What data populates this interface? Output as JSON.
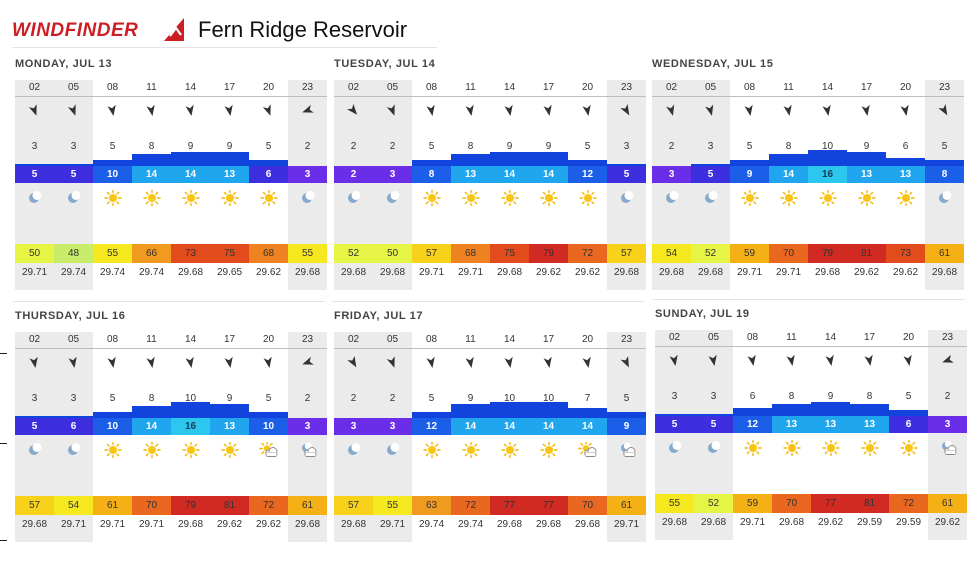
{
  "header": {
    "logo_text": "WINDFINDER",
    "title": "Fern Ridge Reservoir"
  },
  "hours": [
    "02",
    "05",
    "08",
    "11",
    "14",
    "17",
    "20",
    "23"
  ],
  "night_columns": [
    0,
    1,
    7
  ],
  "colors": {
    "night_bg": "#ebebeb",
    "wind_bar": "#1144dd",
    "brand": "#cc1f24"
  },
  "days": [
    {
      "title": "MONDAY, JUL 13",
      "dirs": [
        160,
        160,
        170,
        170,
        170,
        170,
        160,
        250
      ],
      "wind": [
        3,
        3,
        5,
        8,
        9,
        9,
        5,
        2
      ],
      "gusts": [
        5,
        5,
        10,
        14,
        14,
        13,
        6,
        3
      ],
      "weather": [
        "moon",
        "moon",
        "sun",
        "sun",
        "sun",
        "sun",
        "sun",
        "moon"
      ],
      "temp": [
        50,
        48,
        55,
        66,
        73,
        75,
        68,
        55
      ],
      "pressure": [
        "29.71",
        "29.74",
        "29.74",
        "29.74",
        "29.68",
        "29.65",
        "29.62",
        "29.68"
      ]
    },
    {
      "title": "TUESDAY, JUL 14",
      "dirs": [
        140,
        160,
        170,
        170,
        170,
        170,
        170,
        150
      ],
      "wind": [
        2,
        2,
        5,
        8,
        9,
        9,
        5,
        3
      ],
      "gusts": [
        2,
        3,
        8,
        13,
        14,
        14,
        12,
        5
      ],
      "weather": [
        "moon",
        "moon",
        "sun",
        "sun",
        "sun",
        "sun",
        "sun",
        "moon"
      ],
      "temp": [
        52,
        50,
        57,
        68,
        75,
        79,
        72,
        57
      ],
      "pressure": [
        "29.68",
        "29.68",
        "29.71",
        "29.71",
        "29.68",
        "29.62",
        "29.62",
        "29.68"
      ]
    },
    {
      "title": "WEDNESDAY, JUL 15",
      "dirs": [
        165,
        165,
        170,
        170,
        170,
        170,
        170,
        150
      ],
      "wind": [
        2,
        3,
        5,
        8,
        10,
        9,
        6,
        5
      ],
      "gusts": [
        3,
        5,
        9,
        14,
        16,
        13,
        13,
        8
      ],
      "weather": [
        "moon",
        "moon",
        "sun",
        "sun",
        "sun",
        "sun",
        "sun",
        "moon"
      ],
      "temp": [
        54,
        52,
        59,
        70,
        79,
        81,
        73,
        61
      ],
      "pressure": [
        "29.68",
        "29.68",
        "29.71",
        "29.71",
        "29.68",
        "29.62",
        "29.62",
        "29.68"
      ]
    },
    {
      "title": "THURSDAY, JUL 16",
      "dirs": [
        170,
        170,
        170,
        170,
        170,
        170,
        170,
        250
      ],
      "wind": [
        3,
        3,
        5,
        8,
        10,
        9,
        5,
        2
      ],
      "gusts": [
        5,
        6,
        10,
        14,
        16,
        13,
        10,
        3
      ],
      "weather": [
        "moon",
        "moon",
        "sun",
        "sun",
        "sun",
        "sun",
        "sun-cloud",
        "moon-cloud"
      ],
      "temp": [
        57,
        54,
        61,
        70,
        79,
        81,
        72,
        61
      ],
      "pressure": [
        "29.68",
        "29.71",
        "29.71",
        "29.71",
        "29.68",
        "29.62",
        "29.62",
        "29.68"
      ]
    },
    {
      "title": "FRIDAY, JUL 17",
      "dirs": [
        150,
        160,
        170,
        170,
        170,
        170,
        170,
        155
      ],
      "wind": [
        2,
        2,
        5,
        9,
        10,
        10,
        7,
        5
      ],
      "gusts": [
        3,
        3,
        12,
        14,
        14,
        14,
        14,
        9
      ],
      "weather": [
        "moon",
        "moon",
        "sun",
        "sun",
        "sun",
        "sun",
        "sun-cloud",
        "moon-cloud"
      ],
      "temp": [
        57,
        55,
        63,
        72,
        77,
        77,
        70,
        61
      ],
      "pressure": [
        "29.68",
        "29.71",
        "29.74",
        "29.74",
        "29.68",
        "29.68",
        "29.68",
        "29.71"
      ]
    },
    {
      "title": "SUNDAY, JUL 19",
      "dirs": [
        170,
        170,
        170,
        170,
        170,
        170,
        170,
        250
      ],
      "wind": [
        3,
        3,
        6,
        8,
        9,
        8,
        5,
        2
      ],
      "gusts": [
        5,
        5,
        12,
        13,
        13,
        13,
        6,
        3
      ],
      "weather": [
        "moon",
        "moon",
        "sun",
        "sun",
        "sun",
        "sun",
        "sun",
        "moon-cloud"
      ],
      "temp": [
        55,
        52,
        59,
        70,
        77,
        81,
        72,
        61
      ],
      "pressure": [
        "29.68",
        "29.68",
        "29.71",
        "29.68",
        "29.62",
        "29.59",
        "29.59",
        "29.62"
      ]
    }
  ]
}
